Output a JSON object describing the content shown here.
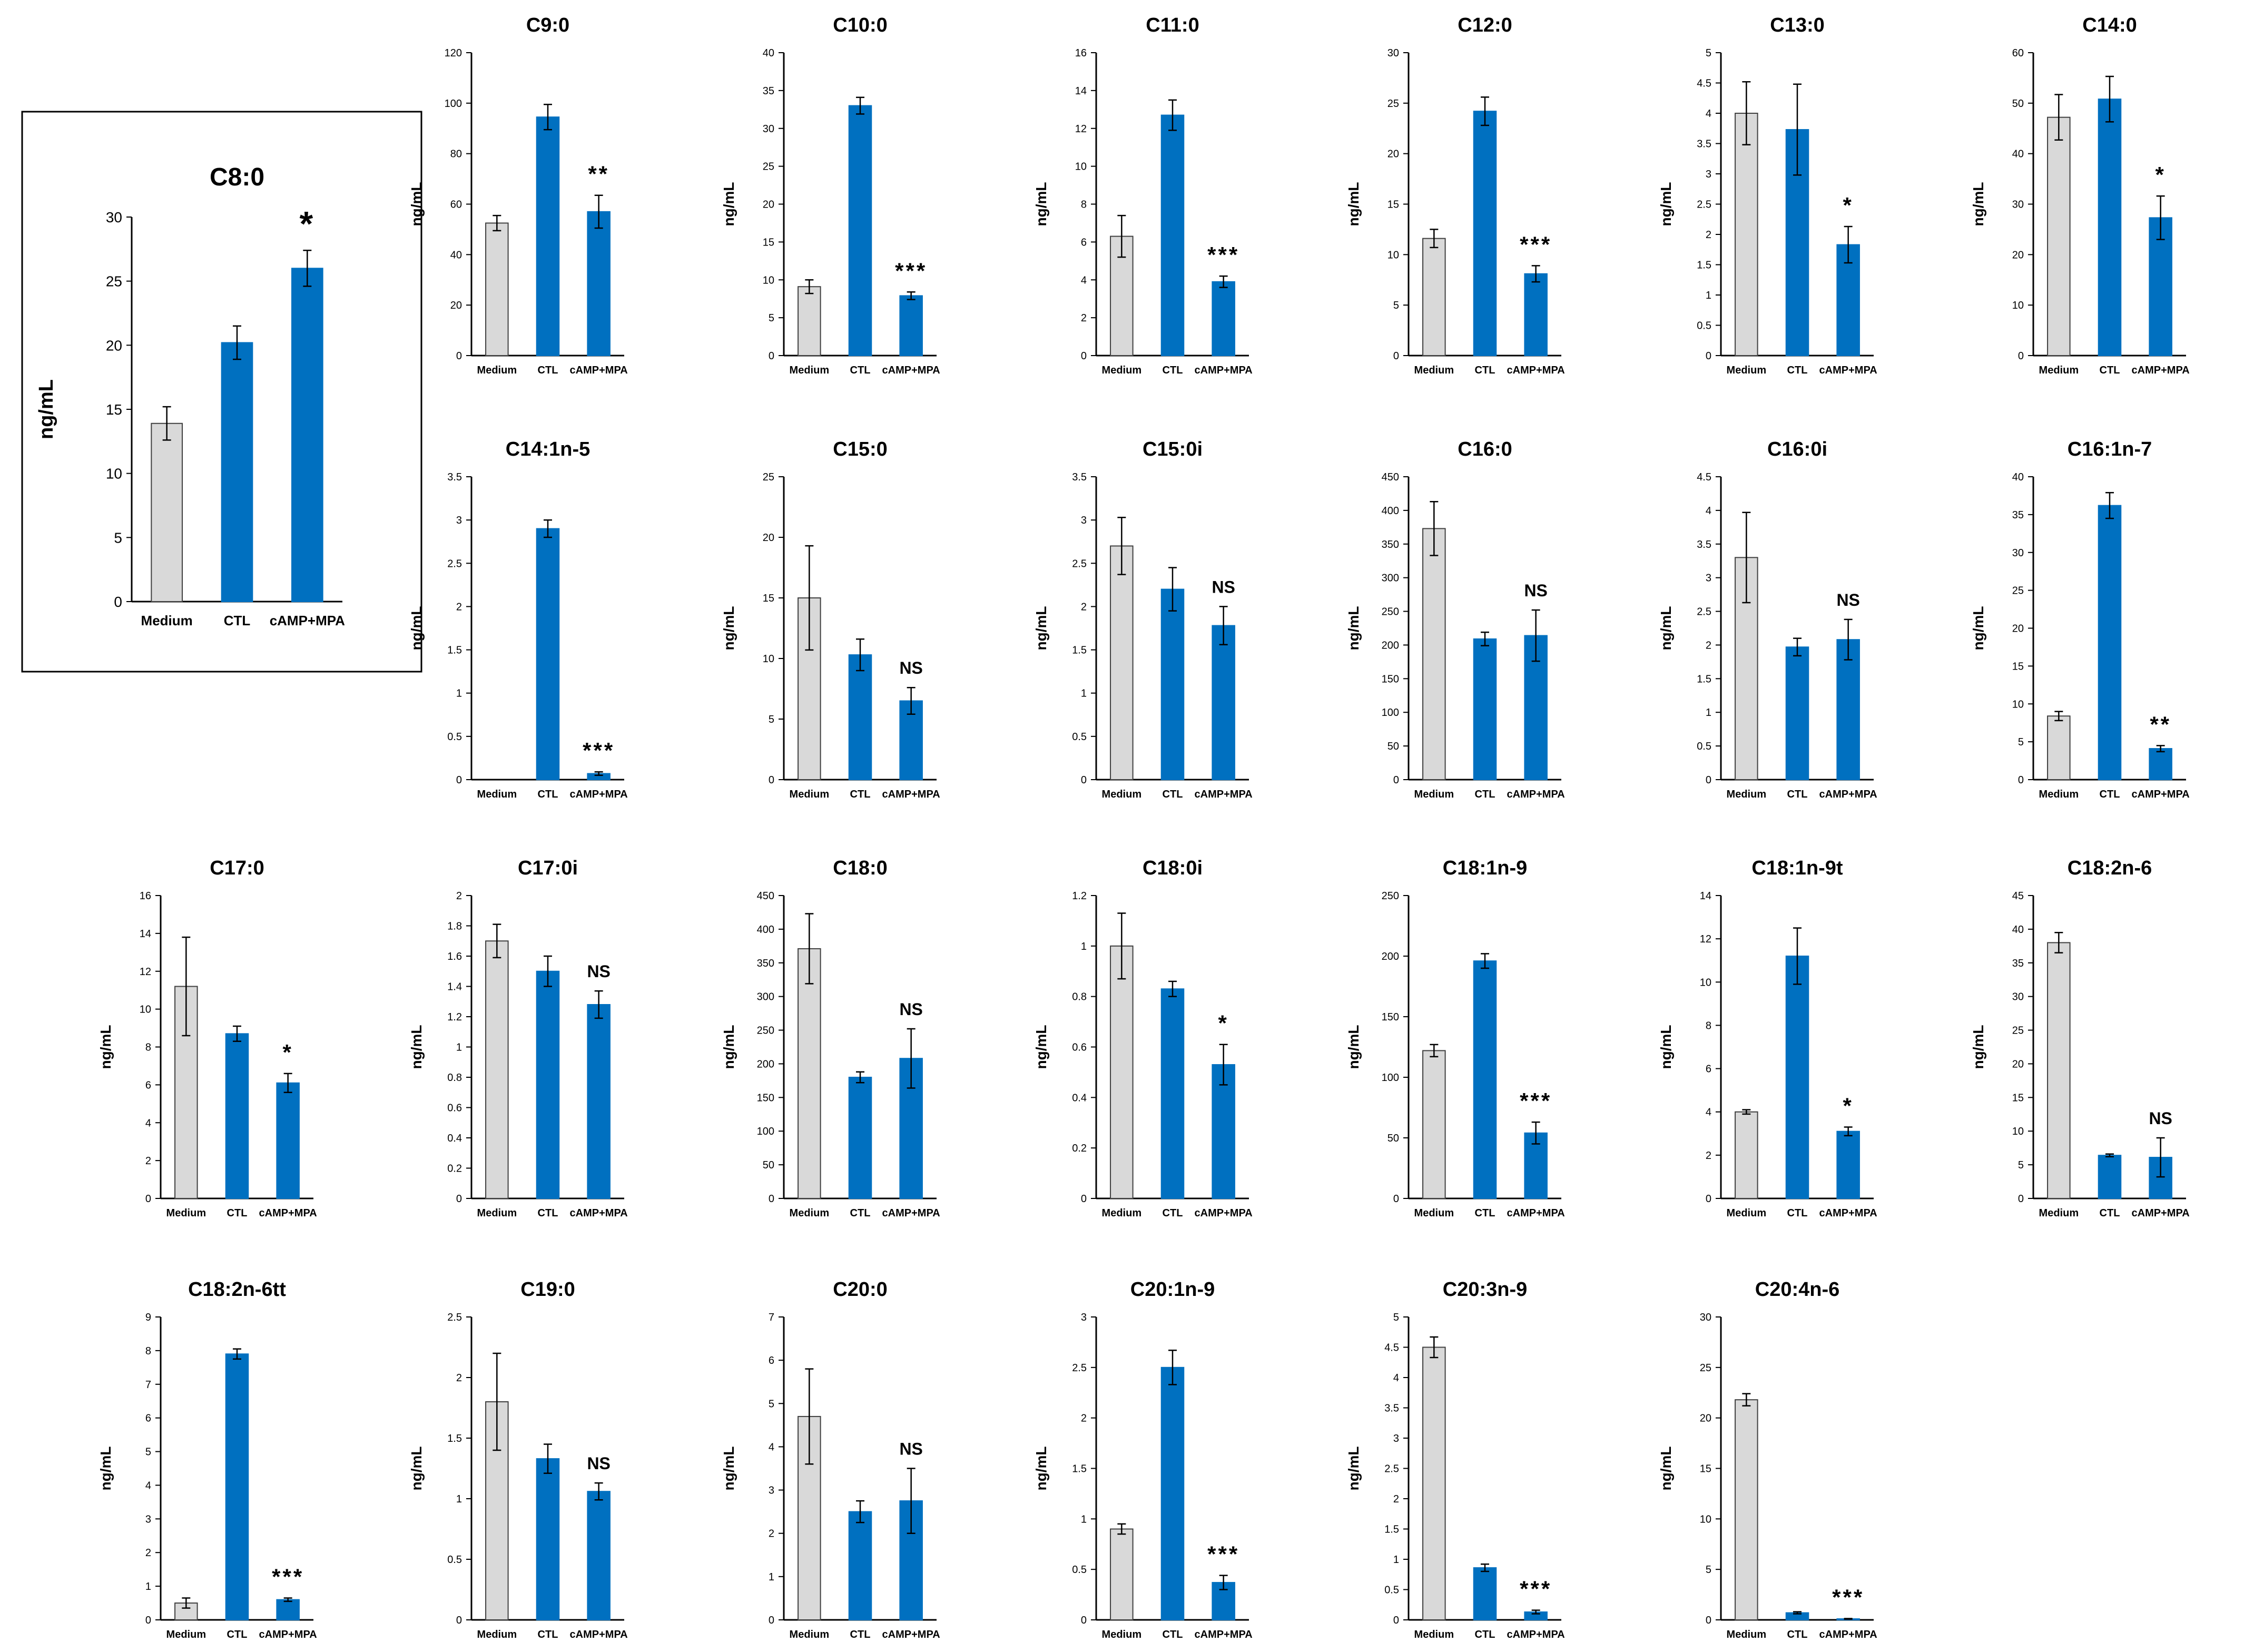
{
  "figure": {
    "categories": [
      "Medium",
      "CTL",
      "cAMP+MPA"
    ],
    "ylabel": "ng/mL",
    "colors": {
      "medium": "#d9d9d9",
      "treated": "#0070c0",
      "border": "#404040",
      "axis": "#000000"
    }
  },
  "chart_data": [
    {
      "type": "bar",
      "title": "C8:0",
      "categories": [
        "Medium",
        "CTL",
        "cAMP+MPA"
      ],
      "values": [
        13.9,
        20.2,
        26.0
      ],
      "errors": [
        1.3,
        1.3,
        1.4
      ],
      "significance": "*",
      "ylabel": "ng/mL",
      "ylim": [
        0,
        30
      ],
      "ticks": [
        0,
        5,
        10,
        15,
        20,
        25,
        30
      ],
      "tick_labels": [
        "0",
        "5",
        "10",
        "15",
        "20",
        "25",
        "30"
      ]
    },
    {
      "type": "bar",
      "title": "C9:0",
      "categories": [
        "Medium",
        "CTL",
        "cAMP+MPA"
      ],
      "values": [
        52.5,
        94.5,
        57.0
      ],
      "errors": [
        3.0,
        5.0,
        6.5
      ],
      "significance": "**",
      "ylabel": "ng/mL",
      "ylim": [
        0,
        120
      ],
      "ticks": [
        0,
        20,
        40,
        60,
        80,
        100,
        120
      ],
      "tick_labels": [
        "0",
        "20",
        "40",
        "60",
        "80",
        "100",
        "120"
      ]
    },
    {
      "type": "bar",
      "title": "C10:0",
      "categories": [
        "Medium",
        "CTL",
        "cAMP+MPA"
      ],
      "values": [
        9.1,
        33.0,
        7.9
      ],
      "errors": [
        0.9,
        1.1,
        0.5
      ],
      "significance": "***",
      "ylabel": "ng/mL",
      "ylim": [
        0,
        40
      ],
      "ticks": [
        0,
        5,
        10,
        15,
        20,
        25,
        30,
        35,
        40
      ],
      "tick_labels": [
        "0",
        "5",
        "10",
        "15",
        "20",
        "25",
        "30",
        "35",
        "40"
      ]
    },
    {
      "type": "bar",
      "title": "C11:0",
      "categories": [
        "Medium",
        "CTL",
        "cAMP+MPA"
      ],
      "values": [
        6.3,
        12.7,
        3.9
      ],
      "errors": [
        1.1,
        0.8,
        0.3
      ],
      "significance": "***",
      "ylabel": "ng/mL",
      "ylim": [
        0,
        16
      ],
      "ticks": [
        0,
        2,
        4,
        6,
        8,
        10,
        12,
        14,
        16
      ],
      "tick_labels": [
        "0",
        "2",
        "4",
        "6",
        "8",
        "10",
        "12",
        "14",
        "16"
      ]
    },
    {
      "type": "bar",
      "title": "C12:0",
      "categories": [
        "Medium",
        "CTL",
        "cAMP+MPA"
      ],
      "values": [
        11.6,
        24.2,
        8.1
      ],
      "errors": [
        0.9,
        1.4,
        0.8
      ],
      "significance": "***",
      "ylabel": "ng/mL",
      "ylim": [
        0,
        30
      ],
      "ticks": [
        0,
        5,
        10,
        15,
        20,
        25,
        30
      ],
      "tick_labels": [
        "0",
        "5",
        "10",
        "15",
        "20",
        "25",
        "30"
      ]
    },
    {
      "type": "bar",
      "title": "C13:0",
      "categories": [
        "Medium",
        "CTL",
        "cAMP+MPA"
      ],
      "values": [
        4.0,
        3.73,
        1.83
      ],
      "errors": [
        0.52,
        0.75,
        0.3
      ],
      "significance": "*",
      "ylabel": "ng/mL",
      "ylim": [
        0,
        5
      ],
      "ticks": [
        0,
        0.5,
        1,
        1.5,
        2,
        2.5,
        3,
        3.5,
        4,
        4.5,
        5
      ],
      "tick_labels": [
        "0",
        "0.5",
        "1",
        "1.5",
        "2",
        "2.5",
        "3",
        "3.5",
        "4",
        "4.5",
        "5"
      ]
    },
    {
      "type": "bar",
      "title": "C14:0",
      "categories": [
        "Medium",
        "CTL",
        "cAMP+MPA"
      ],
      "values": [
        47.2,
        50.8,
        27.3
      ],
      "errors": [
        4.5,
        4.5,
        4.3
      ],
      "significance": "*",
      "ylabel": "ng/mL",
      "ylim": [
        0,
        60
      ],
      "ticks": [
        0,
        10,
        20,
        30,
        40,
        50,
        60
      ],
      "tick_labels": [
        "0",
        "10",
        "20",
        "30",
        "40",
        "50",
        "60"
      ]
    },
    {
      "type": "bar",
      "title": "C14:1n-5",
      "categories": [
        "Medium",
        "CTL",
        "cAMP+MPA"
      ],
      "values": [
        0,
        2.9,
        0.07
      ],
      "errors": [
        0,
        0.1,
        0.02
      ],
      "significance": "***",
      "ylabel": "ng/mL",
      "ylim": [
        0,
        3.5
      ],
      "ticks": [
        0,
        0.5,
        1,
        1.5,
        2,
        2.5,
        3,
        3.5
      ],
      "tick_labels": [
        "0",
        "0.5",
        "1",
        "1.5",
        "2",
        "2.5",
        "3",
        "3.5"
      ]
    },
    {
      "type": "bar",
      "title": "C15:0",
      "categories": [
        "Medium",
        "CTL",
        "cAMP+MPA"
      ],
      "values": [
        15.0,
        10.3,
        6.5
      ],
      "errors": [
        4.3,
        1.3,
        1.1
      ],
      "significance": "NS",
      "ylabel": "ng/mL",
      "ylim": [
        0,
        25
      ],
      "ticks": [
        0,
        5,
        10,
        15,
        20,
        25
      ],
      "tick_labels": [
        "0",
        "5",
        "10",
        "15",
        "20",
        "25"
      ]
    },
    {
      "type": "bar",
      "title": "C15:0i",
      "categories": [
        "Medium",
        "CTL",
        "cAMP+MPA"
      ],
      "values": [
        2.7,
        2.2,
        1.78
      ],
      "errors": [
        0.33,
        0.25,
        0.22
      ],
      "significance": "NS",
      "ylabel": "ng/mL",
      "ylim": [
        0,
        3.5
      ],
      "ticks": [
        0,
        0.5,
        1,
        1.5,
        2,
        2.5,
        3,
        3.5
      ],
      "tick_labels": [
        "0",
        "0.5",
        "1",
        "1.5",
        "2",
        "2.5",
        "3",
        "3.5"
      ]
    },
    {
      "type": "bar",
      "title": "C16:0",
      "categories": [
        "Medium",
        "CTL",
        "cAMP+MPA"
      ],
      "values": [
        373,
        209,
        214
      ],
      "errors": [
        40,
        10,
        38
      ],
      "significance": "NS",
      "ylabel": "ng/mL",
      "ylim": [
        0,
        450
      ],
      "ticks": [
        0,
        50,
        100,
        150,
        200,
        250,
        300,
        350,
        400,
        450
      ],
      "tick_labels": [
        "0",
        "50",
        "100",
        "150",
        "200",
        "250",
        "300",
        "350",
        "400",
        "450"
      ]
    },
    {
      "type": "bar",
      "title": "C16:0i",
      "categories": [
        "Medium",
        "CTL",
        "cAMP+MPA"
      ],
      "values": [
        3.3,
        1.97,
        2.08
      ],
      "errors": [
        0.67,
        0.13,
        0.3
      ],
      "significance": "NS",
      "ylabel": "ng/mL",
      "ylim": [
        0,
        4.5
      ],
      "ticks": [
        0,
        0.5,
        1,
        1.5,
        2,
        2.5,
        3,
        3.5,
        4,
        4.5
      ],
      "tick_labels": [
        "0",
        "0.5",
        "1",
        "1.5",
        "2",
        "2.5",
        "3",
        "3.5",
        "4",
        "4.5"
      ]
    },
    {
      "type": "bar",
      "title": "C16:1n-7",
      "categories": [
        "Medium",
        "CTL",
        "cAMP+MPA"
      ],
      "values": [
        8.4,
        36.2,
        4.1
      ],
      "errors": [
        0.6,
        1.7,
        0.4
      ],
      "significance": "**",
      "ylabel": "ng/mL",
      "ylim": [
        0,
        40
      ],
      "ticks": [
        0,
        5,
        10,
        15,
        20,
        25,
        30,
        35,
        40
      ],
      "tick_labels": [
        "0",
        "5",
        "10",
        "15",
        "20",
        "25",
        "30",
        "35",
        "40"
      ]
    },
    {
      "type": "bar",
      "title": "C17:0",
      "categories": [
        "Medium",
        "CTL",
        "cAMP+MPA"
      ],
      "values": [
        11.2,
        8.7,
        6.1
      ],
      "errors": [
        2.6,
        0.4,
        0.5
      ],
      "significance": "*",
      "ylabel": "ng/mL",
      "ylim": [
        0,
        16
      ],
      "ticks": [
        0,
        2,
        4,
        6,
        8,
        10,
        12,
        14,
        16
      ],
      "tick_labels": [
        "0",
        "2",
        "4",
        "6",
        "8",
        "10",
        "12",
        "14",
        "16"
      ]
    },
    {
      "type": "bar",
      "title": "C17:0i",
      "categories": [
        "Medium",
        "CTL",
        "cAMP+MPA"
      ],
      "values": [
        1.7,
        1.5,
        1.28
      ],
      "errors": [
        0.11,
        0.1,
        0.09
      ],
      "significance": "NS",
      "ylabel": "ng/mL",
      "ylim": [
        0,
        2
      ],
      "ticks": [
        0,
        0.2,
        0.4,
        0.6,
        0.8,
        1,
        1.2,
        1.4,
        1.6,
        1.8,
        2
      ],
      "tick_labels": [
        "0",
        "0.2",
        "0.4",
        "0.6",
        "0.8",
        "1",
        "1.2",
        "1.4",
        "1.6",
        "1.8",
        "2"
      ]
    },
    {
      "type": "bar",
      "title": "C18:0",
      "categories": [
        "Medium",
        "CTL",
        "cAMP+MPA"
      ],
      "values": [
        371,
        180,
        208
      ],
      "errors": [
        52,
        8,
        44
      ],
      "significance": "NS",
      "ylabel": "ng/mL",
      "ylim": [
        0,
        450
      ],
      "ticks": [
        0,
        50,
        100,
        150,
        200,
        250,
        300,
        350,
        400,
        450
      ],
      "tick_labels": [
        "0",
        "50",
        "100",
        "150",
        "200",
        "250",
        "300",
        "350",
        "400",
        "450"
      ]
    },
    {
      "type": "bar",
      "title": "C18:0i",
      "categories": [
        "Medium",
        "CTL",
        "cAMP+MPA"
      ],
      "values": [
        1.0,
        0.83,
        0.53
      ],
      "errors": [
        0.13,
        0.03,
        0.08
      ],
      "significance": "*",
      "ylabel": "ng/mL",
      "ylim": [
        0,
        1.2
      ],
      "ticks": [
        0,
        0.2,
        0.4,
        0.6,
        0.8,
        1,
        1.2
      ],
      "tick_labels": [
        "0",
        "0.2",
        "0.4",
        "0.6",
        "0.8",
        "1",
        "1.2"
      ]
    },
    {
      "type": "bar",
      "title": "C18:1n-9",
      "categories": [
        "Medium",
        "CTL",
        "cAMP+MPA"
      ],
      "values": [
        122,
        196,
        54
      ],
      "errors": [
        5,
        6,
        9
      ],
      "significance": "***",
      "ylabel": "ng/mL",
      "ylim": [
        0,
        250
      ],
      "ticks": [
        0,
        50,
        100,
        150,
        200,
        250
      ],
      "tick_labels": [
        "0",
        "50",
        "100",
        "150",
        "200",
        "250"
      ]
    },
    {
      "type": "bar",
      "title": "C18:1n-9t",
      "categories": [
        "Medium",
        "CTL",
        "cAMP+MPA"
      ],
      "values": [
        4.0,
        11.2,
        3.1
      ],
      "errors": [
        0.1,
        1.3,
        0.2
      ],
      "significance": "*",
      "ylabel": "ng/mL",
      "ylim": [
        0,
        14
      ],
      "ticks": [
        0,
        2,
        4,
        6,
        8,
        10,
        12,
        14
      ],
      "tick_labels": [
        "0",
        "2",
        "4",
        "6",
        "8",
        "10",
        "12",
        "14"
      ]
    },
    {
      "type": "bar",
      "title": "C18:2n-6",
      "categories": [
        "Medium",
        "CTL",
        "cAMP+MPA"
      ],
      "values": [
        38.0,
        6.4,
        6.1
      ],
      "errors": [
        1.5,
        0.2,
        2.9
      ],
      "significance": "NS",
      "ylabel": "ng/mL",
      "ylim": [
        0,
        45
      ],
      "ticks": [
        0,
        5,
        10,
        15,
        20,
        25,
        30,
        35,
        40,
        45
      ],
      "tick_labels": [
        "0",
        "5",
        "10",
        "15",
        "20",
        "25",
        "30",
        "35",
        "40",
        "45"
      ]
    },
    {
      "type": "bar",
      "title": "C18:2n-6tt",
      "categories": [
        "Medium",
        "CTL",
        "cAMP+MPA"
      ],
      "values": [
        0.5,
        7.9,
        0.6
      ],
      "errors": [
        0.15,
        0.15,
        0.05
      ],
      "significance": "***",
      "ylabel": "ng/mL",
      "ylim": [
        0,
        9
      ],
      "ticks": [
        0,
        1,
        2,
        3,
        4,
        5,
        6,
        7,
        8,
        9
      ],
      "tick_labels": [
        "0",
        "1",
        "2",
        "3",
        "4",
        "5",
        "6",
        "7",
        "8",
        "9"
      ]
    },
    {
      "type": "bar",
      "title": "C19:0",
      "categories": [
        "Medium",
        "CTL",
        "cAMP+MPA"
      ],
      "values": [
        1.8,
        1.33,
        1.06
      ],
      "errors": [
        0.4,
        0.12,
        0.07
      ],
      "significance": "NS",
      "ylabel": "ng/mL",
      "ylim": [
        0,
        2.5
      ],
      "ticks": [
        0,
        0.5,
        1,
        1.5,
        2,
        2.5
      ],
      "tick_labels": [
        "0",
        "0.5",
        "1",
        "1.5",
        "2",
        "2.5"
      ]
    },
    {
      "type": "bar",
      "title": "C20:0",
      "categories": [
        "Medium",
        "CTL",
        "cAMP+MPA"
      ],
      "values": [
        4.7,
        2.5,
        2.75
      ],
      "errors": [
        1.1,
        0.25,
        0.75
      ],
      "significance": "NS",
      "ylabel": "ng/mL",
      "ylim": [
        0,
        7
      ],
      "ticks": [
        0,
        1,
        2,
        3,
        4,
        5,
        6,
        7
      ],
      "tick_labels": [
        "0",
        "1",
        "2",
        "3",
        "4",
        "5",
        "6",
        "7"
      ]
    },
    {
      "type": "bar",
      "title": "C20:1n-9",
      "categories": [
        "Medium",
        "CTL",
        "cAMP+MPA"
      ],
      "values": [
        0.9,
        2.5,
        0.37
      ],
      "errors": [
        0.05,
        0.17,
        0.07
      ],
      "significance": "***",
      "ylabel": "ng/mL",
      "ylim": [
        0,
        3
      ],
      "ticks": [
        0,
        0.5,
        1,
        1.5,
        2,
        2.5,
        3
      ],
      "tick_labels": [
        "0",
        "0.5",
        "1",
        "1.5",
        "2",
        "2.5",
        "3"
      ]
    },
    {
      "type": "bar",
      "title": "C20:3n-9",
      "categories": [
        "Medium",
        "CTL",
        "cAMP+MPA"
      ],
      "values": [
        4.5,
        0.86,
        0.13
      ],
      "errors": [
        0.17,
        0.06,
        0.03
      ],
      "significance": "***",
      "ylabel": "ng/mL",
      "ylim": [
        0,
        5
      ],
      "ticks": [
        0,
        0.5,
        1,
        1.5,
        2,
        2.5,
        3,
        3.5,
        4,
        4.5,
        5
      ],
      "tick_labels": [
        "0",
        "0.5",
        "1",
        "1.5",
        "2",
        "2.5",
        "3",
        "3.5",
        "4",
        "4.5",
        "5"
      ]
    },
    {
      "type": "bar",
      "title": "C20:4n-6",
      "categories": [
        "Medium",
        "CTL",
        "cAMP+MPA"
      ],
      "values": [
        21.8,
        0.7,
        0.1
      ],
      "errors": [
        0.6,
        0.1,
        0.03
      ],
      "significance": "***",
      "ylabel": "ng/mL",
      "ylim": [
        0,
        30
      ],
      "ticks": [
        0,
        5,
        10,
        15,
        20,
        25,
        30
      ],
      "tick_labels": [
        "0",
        "5",
        "10",
        "15",
        "20",
        "25",
        "30"
      ]
    }
  ]
}
